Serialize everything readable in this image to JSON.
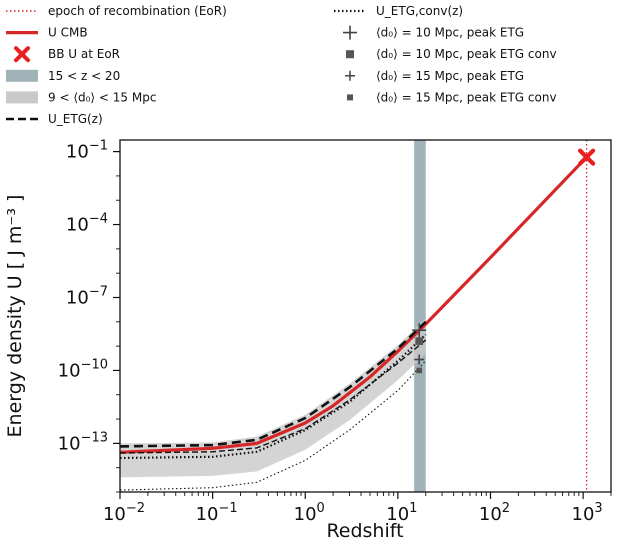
{
  "chart_data": {
    "type": "line",
    "xlabel": "Redshift",
    "ylabel": "Energy density U [ J m⁻³ ]",
    "x_scale": "log",
    "y_scale": "log",
    "xlim": [
      0.01,
      2000
    ],
    "ylim": [
      1e-15,
      0.3
    ],
    "x_ticks": [
      {
        "value": 0.01,
        "base": "10",
        "exp": "−2"
      },
      {
        "value": 0.1,
        "base": "10",
        "exp": "−1"
      },
      {
        "value": 1,
        "base": "10",
        "exp": "0"
      },
      {
        "value": 10,
        "base": "10",
        "exp": "1"
      },
      {
        "value": 100,
        "base": "10",
        "exp": "2"
      },
      {
        "value": 1000,
        "base": "10",
        "exp": "3"
      }
    ],
    "y_ticks": [
      {
        "value": 1e-13,
        "base": "10",
        "exp": "−13"
      },
      {
        "value": 1e-10,
        "base": "10",
        "exp": "−10"
      },
      {
        "value": 1e-07,
        "base": "10",
        "exp": "−7"
      },
      {
        "value": 0.0001,
        "base": "10",
        "exp": "−4"
      },
      {
        "value": 0.1,
        "base": "10",
        "exp": "−1"
      }
    ],
    "grid": false,
    "legend_placement": "top, outside plot",
    "legend": {
      "left": [
        {
          "label": "epoch of recombination (EoR)",
          "style": "dotted-red"
        },
        {
          "label": "U CMB",
          "style": "solid-red"
        },
        {
          "label": "BB U at EoR",
          "style": "red-x"
        },
        {
          "label": "15 < z < 20",
          "style": "band-slate"
        },
        {
          "label": "9 < ⟨d₀⟩ < 15 Mpc",
          "style": "band-gray"
        },
        {
          "label": "U_ETG(z)",
          "style": "dashed-black"
        }
      ],
      "right": [
        {
          "label": "U_ETG,conv(z)",
          "style": "dotted-black"
        },
        {
          "label": "⟨d₀⟩ = 10 Mpc, peak ETG",
          "style": "plus-large"
        },
        {
          "label": "⟨d₀⟩ = 10 Mpc, peak ETG conv",
          "style": "square-large"
        },
        {
          "label": "⟨d₀⟩ = 15 Mpc, peak ETG",
          "style": "plus-small"
        },
        {
          "label": "⟨d₀⟩ = 15 Mpc, peak ETG conv",
          "style": "square-small"
        }
      ]
    },
    "recombination_z": 1090,
    "redshift_band": [
      15,
      20
    ],
    "series": [
      {
        "name": "U CMB",
        "color": "#d62728",
        "style": "solid",
        "x": [
          0.01,
          0.1,
          0.3,
          1,
          2,
          5,
          10,
          20,
          100,
          1000,
          1090
        ],
        "y": [
          4.3e-14,
          6.3e-14,
          1e-13,
          6.9e-13,
          3.5e-12,
          5.4e-11,
          6.2e-10,
          8.1e-09,
          4.4e-06,
          0.042,
          0.059
        ]
      },
      {
        "name": "U_ETG(z)",
        "color": "#111111",
        "style": "dashed",
        "ref": "upper",
        "x": [
          0.01,
          0.1,
          0.3,
          1,
          3,
          10,
          20
        ],
        "y": [
          7.5e-14,
          8.5e-14,
          1.4e-13,
          1.1e-12,
          2e-11,
          8e-10,
          1e-08
        ]
      },
      {
        "color": "#111111",
        "style": "dashed",
        "ref": "lower",
        "x": [
          0.01,
          0.1,
          0.3,
          1,
          3,
          10,
          20
        ],
        "y": [
          4e-14,
          4.5e-14,
          6.5e-14,
          4e-13,
          6e-12,
          2e-10,
          1.8e-09
        ]
      },
      {
        "name": "U_ETG,conv(z)",
        "color": "#111111",
        "style": "dotted",
        "ref": "upper",
        "x": [
          0.01,
          0.1,
          0.3,
          1,
          3,
          10,
          20
        ],
        "y": [
          2.5e-14,
          2.8e-14,
          4.5e-14,
          3.5e-13,
          5e-12,
          2.5e-10,
          3e-09
        ]
      },
      {
        "color": "#111111",
        "style": "dotted",
        "ref": "lower",
        "x": [
          0.01,
          0.1,
          0.3,
          1,
          3,
          10,
          20
        ],
        "y": [
          1.2e-15,
          1.5e-15,
          2.5e-15,
          2e-14,
          3.5e-13,
          1.5e-11,
          2.5e-10
        ]
      }
    ],
    "band": {
      "name": "9 < ⟨d₀⟩ < 15 Mpc",
      "x": [
        0.01,
        0.1,
        0.3,
        1,
        3,
        10,
        20
      ],
      "upper": [
        1e-13,
        1.1e-13,
        1.9e-13,
        1.5e-12,
        2.8e-11,
        1.1e-09,
        1.4e-08
      ],
      "lower": [
        4e-15,
        4.6e-15,
        7e-15,
        5.5e-14,
        9e-13,
        4e-11,
        5e-10
      ]
    },
    "markers": [
      {
        "name": "BB U at EoR",
        "shape": "x",
        "x": 1090,
        "y": 0.059
      },
      {
        "name": "⟨d₀⟩ = 10 Mpc, peak ETG",
        "shape": "plus-large",
        "x": 17,
        "y": 4.5e-09
      },
      {
        "name": "⟨d₀⟩ = 10 Mpc, peak ETG conv",
        "shape": "square-large",
        "x": 17,
        "y": 1.6e-09
      },
      {
        "name": "⟨d₀⟩ = 15 Mpc, peak ETG",
        "shape": "plus-small",
        "x": 17,
        "y": 2.8e-10
      },
      {
        "name": "⟨d₀⟩ = 15 Mpc, peak ETG conv",
        "shape": "square-small",
        "x": 17,
        "y": 1e-10
      }
    ]
  }
}
